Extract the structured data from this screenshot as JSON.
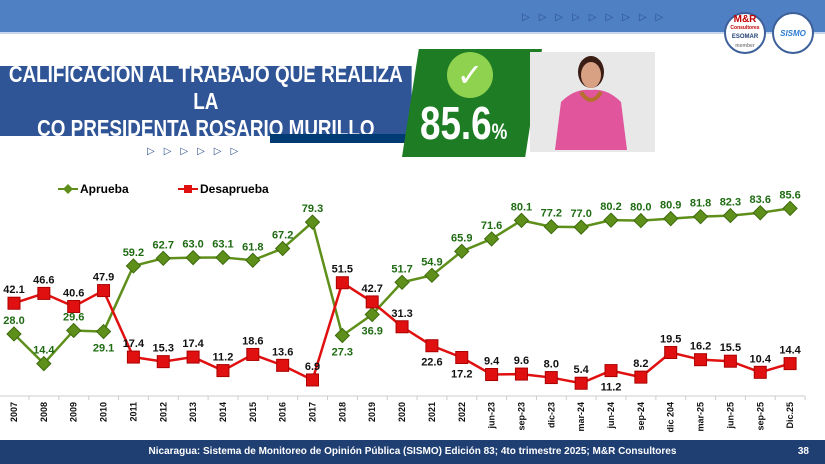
{
  "header": {
    "arrows_top": "▷▷▷▷▷▷▷▷▷",
    "arrows_mid": "▷▷▷▷▷▷",
    "logo_mr": "M&R",
    "logo_mr_sub": "Consultores",
    "logo_esomar": "ESOMAR",
    "logo_member": "member",
    "logo_sismo": "SISMO"
  },
  "title": {
    "line1": "CALIFICACIÓN AL TRABAJO QUE REALIZA LA",
    "line2": "CO PRESIDENTA ROSARIO MURILLO"
  },
  "highlight": {
    "value": "85.6",
    "unit": "%",
    "icon": "check-icon"
  },
  "colors": {
    "aprueba": "#5e8f1a",
    "aprueba_label": "#1e6b12",
    "desaprueba": "#e01010",
    "desaprueba_label": "#111111"
  },
  "chart_data": {
    "type": "line",
    "categories": [
      "2007",
      "2008",
      "2009",
      "2010",
      "2011",
      "2012",
      "2013",
      "2014",
      "2015",
      "2016",
      "2017",
      "2018",
      "2019",
      "2020",
      "2021",
      "2022",
      "jun-23",
      "sep-23",
      "dic-23",
      "mar-24",
      "jun-24",
      "sep-24",
      "dic 204",
      "mar-25",
      "jun-25",
      "sep-25",
      "Dic.25"
    ],
    "series": [
      {
        "name": "Aprueba",
        "values": [
          28.0,
          14.4,
          29.6,
          29.1,
          59.2,
          62.7,
          63.0,
          63.1,
          61.8,
          67.2,
          79.3,
          27.3,
          36.9,
          51.7,
          54.9,
          65.9,
          71.6,
          80.1,
          77.2,
          77.0,
          80.2,
          80.0,
          80.9,
          81.8,
          82.3,
          83.6,
          85.6
        ]
      },
      {
        "name": "Desaprueba",
        "values": [
          42.1,
          46.6,
          40.6,
          47.9,
          17.4,
          15.3,
          17.4,
          11.2,
          18.6,
          13.6,
          6.9,
          51.5,
          42.7,
          31.3,
          22.6,
          17.2,
          9.4,
          9.6,
          8.0,
          5.4,
          11.2,
          8.2,
          19.5,
          16.2,
          15.5,
          10.4,
          14.4
        ]
      }
    ],
    "legend": "top-left",
    "grid": false,
    "ylim": [
      0,
      90
    ]
  },
  "footer": {
    "source": "Nicaragua: Sistema de Monitoreo de Opinión Pública (SISMO) Edición 83; 4to trimestre 2025; M&R Consultores",
    "page": "38"
  }
}
